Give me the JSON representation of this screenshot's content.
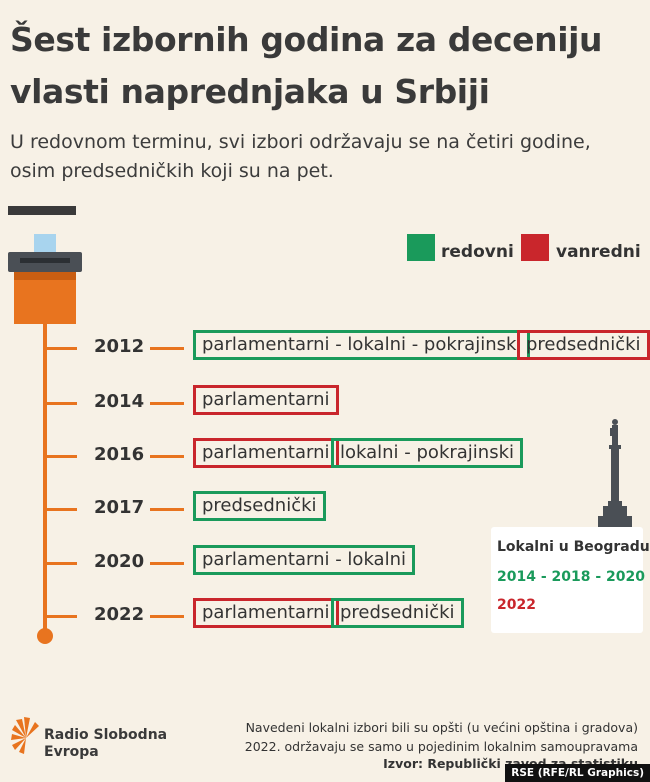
{
  "title": "Šest izbornih godina za deceniju vlasti naprednjaka u Srbiji",
  "subtitle": "U redovnom terminu, svi izbori održavaju se na četiri godine, osim predsedničkih koji su na pet.",
  "legend": {
    "regular": {
      "label": "redovni",
      "color": "#1a9a5b"
    },
    "early": {
      "label": "vanredni",
      "color": "#c9262c"
    }
  },
  "timeline": [
    {
      "year": "2012",
      "elections": [
        {
          "label": "parlamentarni - lokalni - pokrajinski",
          "type": "regular"
        },
        {
          "label": "predsednički",
          "type": "early"
        }
      ]
    },
    {
      "year": "2014",
      "elections": [
        {
          "label": "parlamentarni",
          "type": "early"
        }
      ]
    },
    {
      "year": "2016",
      "elections": [
        {
          "label": "parlamentarni",
          "type": "early"
        },
        {
          "label": "lokalni - pokrajinski",
          "type": "regular"
        }
      ]
    },
    {
      "year": "2017",
      "elections": [
        {
          "label": "predsednički",
          "type": "regular"
        }
      ]
    },
    {
      "year": "2020",
      "elections": [
        {
          "label": "parlamentarni - lokalni",
          "type": "regular"
        }
      ]
    },
    {
      "year": "2022",
      "elections": [
        {
          "label": "parlamentarni",
          "type": "early"
        },
        {
          "label": "predsednički",
          "type": "regular"
        }
      ]
    }
  ],
  "belgrade": {
    "title": "Lokalni u Beogradu:",
    "regular": "2014 - 2018 - 2020",
    "early": "2022"
  },
  "footer": {
    "logo_line1": "Radio Slobodna",
    "logo_line2": "Evropa",
    "note_line1": "Navedeni lokalni izbori bili su opšti (u većini opština i gradova)",
    "note_line2": "2022. održavaju se samo u pojedinim lokalnim samoupravama",
    "source": "Izvor: Republički zavod za statistiku",
    "credit": "RSE (RFE/RL Graphics)"
  },
  "icons": [
    "ballot-box-icon",
    "monument-icon",
    "rse-logo-icon"
  ]
}
